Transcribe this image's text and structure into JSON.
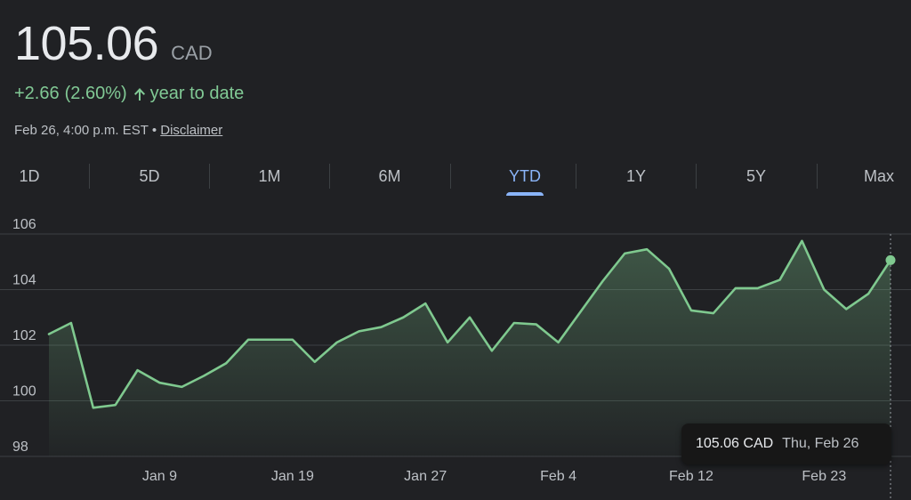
{
  "quote": {
    "price": "105.06",
    "currency": "CAD",
    "change": "+2.66",
    "change_percent": "(2.60%)",
    "period_label": "year to date",
    "timestamp": "Feb 26, 4:00 p.m. EST",
    "separator": "•",
    "disclaimer": "Disclaimer"
  },
  "colors": {
    "background": "#202124",
    "positive": "#81c995",
    "accent": "#8ab4f8",
    "line": "#7fc98f"
  },
  "icons": {
    "change_direction": "arrow-up-icon"
  },
  "tabs": [
    {
      "label": "1D",
      "active": false
    },
    {
      "label": "5D",
      "active": false
    },
    {
      "label": "1M",
      "active": false
    },
    {
      "label": "6M",
      "active": false
    },
    {
      "label": "YTD",
      "active": true
    },
    {
      "label": "1Y",
      "active": false
    },
    {
      "label": "5Y",
      "active": false
    },
    {
      "label": "Max",
      "active": false
    }
  ],
  "tooltip": {
    "price": "105.06 CAD",
    "date": "Thu, Feb 26"
  },
  "chart_data": {
    "type": "area",
    "title": "",
    "xlabel": "",
    "ylabel": "",
    "ylim": [
      98,
      106
    ],
    "yticks": [
      98,
      100,
      102,
      104,
      106
    ],
    "xtick_labels": [
      "Jan 9",
      "Jan 19",
      "Jan 27",
      "Feb 4",
      "Feb 12",
      "Feb 23"
    ],
    "grid": true,
    "series": [
      {
        "dates": [
          "Jan 2",
          "Jan 5",
          "Jan 6",
          "Jan 7",
          "Jan 8",
          "Jan 9",
          "Jan 12",
          "Jan 13",
          "Jan 14",
          "Jan 15",
          "Jan 16",
          "Jan 19",
          "Jan 20",
          "Jan 21",
          "Jan 22",
          "Jan 23",
          "Jan 26",
          "Jan 27",
          "Jan 28",
          "Jan 29",
          "Jan 30",
          "Feb 2",
          "Feb 3",
          "Feb 4",
          "Feb 5",
          "Feb 6",
          "Feb 9",
          "Feb 10",
          "Feb 11",
          "Feb 12",
          "Feb 13",
          "Feb 17",
          "Feb 18",
          "Feb 19",
          "Feb 20",
          "Feb 23",
          "Feb 24",
          "Feb 25",
          "Feb 26"
        ],
        "values": [
          102.4,
          102.8,
          99.75,
          99.85,
          101.1,
          100.65,
          100.5,
          100.9,
          101.35,
          102.2,
          102.2,
          102.2,
          101.4,
          102.1,
          102.5,
          102.65,
          103.0,
          103.5,
          102.1,
          103.0,
          101.8,
          102.8,
          102.75,
          102.1,
          103.2,
          104.3,
          105.3,
          105.45,
          104.75,
          103.25,
          103.15,
          104.05,
          104.05,
          104.35,
          105.75,
          104.0,
          103.3,
          103.85,
          105.06
        ]
      }
    ],
    "highlight": {
      "date": "Thu, Feb 26",
      "value": 105.06
    }
  }
}
